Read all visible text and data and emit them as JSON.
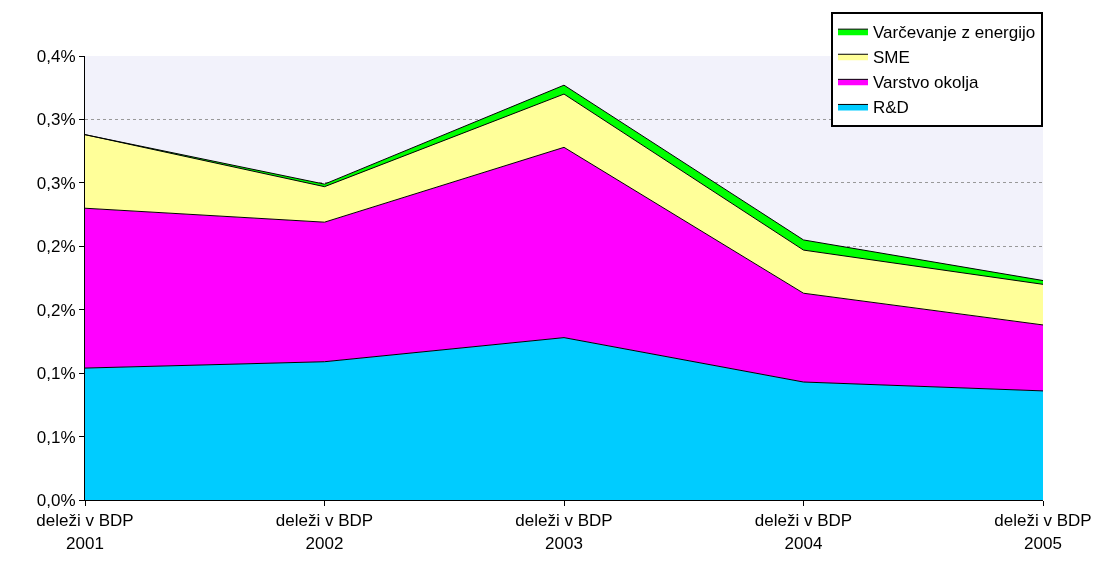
{
  "chart_data": {
    "type": "area",
    "stacked": true,
    "categories": [
      "deleži v BDP\n2001",
      "deleži v BDP\n2002",
      "deleži v BDP\n2003",
      "deleži v BDP\n2004",
      "deleži v BDP\n2005"
    ],
    "series": [
      {
        "name": "R&D",
        "color": "#00ccff",
        "values": [
          0.104,
          0.109,
          0.128,
          0.093,
          0.086
        ]
      },
      {
        "name": "Varstvo okolja",
        "color": "#ff00ff",
        "values": [
          0.126,
          0.11,
          0.15,
          0.07,
          0.052
        ]
      },
      {
        "name": "SME",
        "color": "#ffff99",
        "values": [
          0.058,
          0.028,
          0.042,
          0.034,
          0.032
        ]
      },
      {
        "name": "Varčevanje z energijo",
        "color": "#00ff00",
        "values": [
          0.0,
          0.002,
          0.007,
          0.008,
          0.003
        ]
      }
    ],
    "ylim": [
      0,
      0.35
    ],
    "yticks": [
      {
        "value": 0,
        "label": "0,0%"
      },
      {
        "value": 0.05,
        "label": "0,1%"
      },
      {
        "value": 0.1,
        "label": "0,1%"
      },
      {
        "value": 0.15,
        "label": "0,2%"
      },
      {
        "value": 0.2,
        "label": "0,2%"
      },
      {
        "value": 0.25,
        "label": "0,3%"
      },
      {
        "value": 0.3,
        "label": "0,3%"
      },
      {
        "value": 0.35,
        "label": "0,4%"
      }
    ],
    "grid": "y",
    "legend": "top right"
  }
}
